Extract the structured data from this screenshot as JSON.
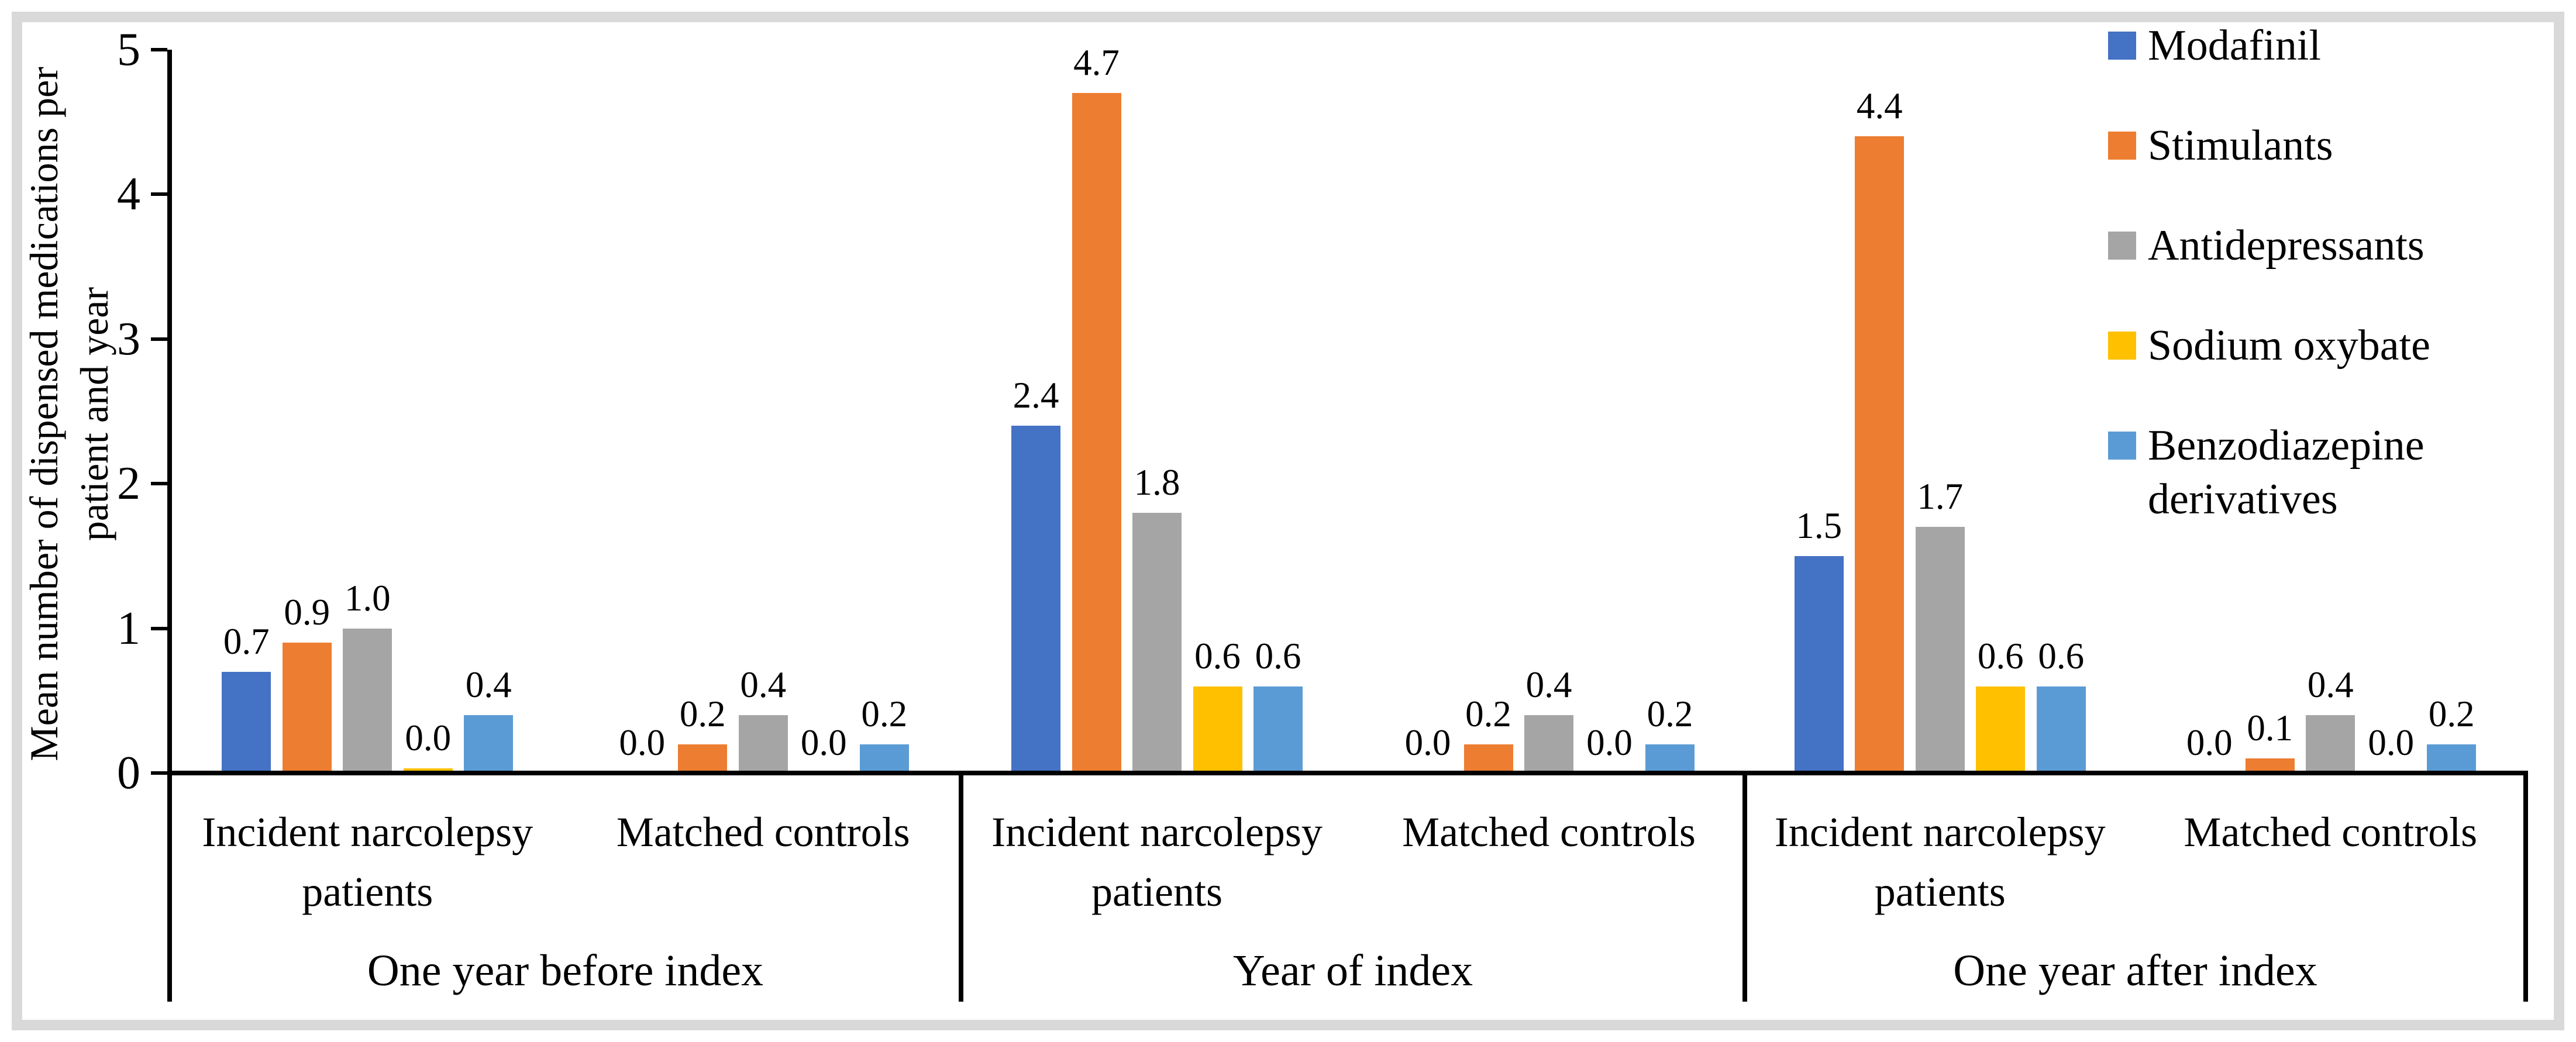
{
  "chart_data": {
    "type": "bar",
    "title": "",
    "ylabel_lines": [
      "Mean number of dispensed medications per",
      "patient and year"
    ],
    "xlabel": "",
    "ylim": [
      0,
      5
    ],
    "yticks": [
      "0",
      "1",
      "2",
      "3",
      "4",
      "5"
    ],
    "grid": false,
    "legend_position": "top-right",
    "axis_color": "#000000",
    "frame_color": "#D9D9D9",
    "series": [
      {
        "name": "Modafinil",
        "color": "#4472C4",
        "legend_lines": [
          "Modafinil"
        ]
      },
      {
        "name": "Stimulants",
        "color": "#ED7D31",
        "legend_lines": [
          "Stimulants"
        ]
      },
      {
        "name": "Antidepressants",
        "color": "#A5A5A5",
        "legend_lines": [
          "Antidepressants"
        ]
      },
      {
        "name": "Sodium oxybate",
        "color": "#FFC000",
        "legend_lines": [
          "Sodium oxybate"
        ]
      },
      {
        "name": "Benzodiazepine derivatives",
        "color": "#5B9BD5",
        "legend_lines": [
          "Benzodiazepine",
          "derivatives"
        ]
      }
    ],
    "groups": [
      {
        "label": "One year before index",
        "subgroups": [
          {
            "label_lines": [
              "Incident narcolepsy",
              "patients"
            ],
            "values": [
              0.7,
              0.9,
              1.0,
              0.0,
              0.4
            ],
            "value_labels": [
              "0.7",
              "0.9",
              "1.0",
              "0.0",
              "0.4"
            ],
            "sliver": [
              3
            ]
          },
          {
            "label_lines": [
              "Matched controls"
            ],
            "values": [
              0.0,
              0.2,
              0.4,
              0.0,
              0.2
            ],
            "value_labels": [
              "0.0",
              "0.2",
              "0.4",
              "0.0",
              "0.2"
            ],
            "sliver": []
          }
        ]
      },
      {
        "label": "Year of index",
        "subgroups": [
          {
            "label_lines": [
              "Incident narcolepsy",
              "patients"
            ],
            "values": [
              2.4,
              4.7,
              1.8,
              0.6,
              0.6
            ],
            "value_labels": [
              "2.4",
              "4.7",
              "1.8",
              "0.6",
              "0.6"
            ],
            "sliver": []
          },
          {
            "label_lines": [
              "Matched controls"
            ],
            "values": [
              0.0,
              0.2,
              0.4,
              0.0,
              0.2
            ],
            "value_labels": [
              "0.0",
              "0.2",
              "0.4",
              "0.0",
              "0.2"
            ],
            "sliver": []
          }
        ]
      },
      {
        "label": "One year after index",
        "subgroups": [
          {
            "label_lines": [
              "Incident narcolepsy",
              "patients"
            ],
            "values": [
              1.5,
              4.4,
              1.7,
              0.6,
              0.6
            ],
            "value_labels": [
              "1.5",
              "4.4",
              "1.7",
              "0.6",
              "0.6"
            ],
            "sliver": []
          },
          {
            "label_lines": [
              "Matched controls"
            ],
            "values": [
              0.0,
              0.1,
              0.4,
              0.0,
              0.2
            ],
            "value_labels": [
              "0.0",
              "0.1",
              "0.4",
              "0.0",
              "0.2"
            ],
            "sliver": []
          }
        ]
      }
    ]
  }
}
